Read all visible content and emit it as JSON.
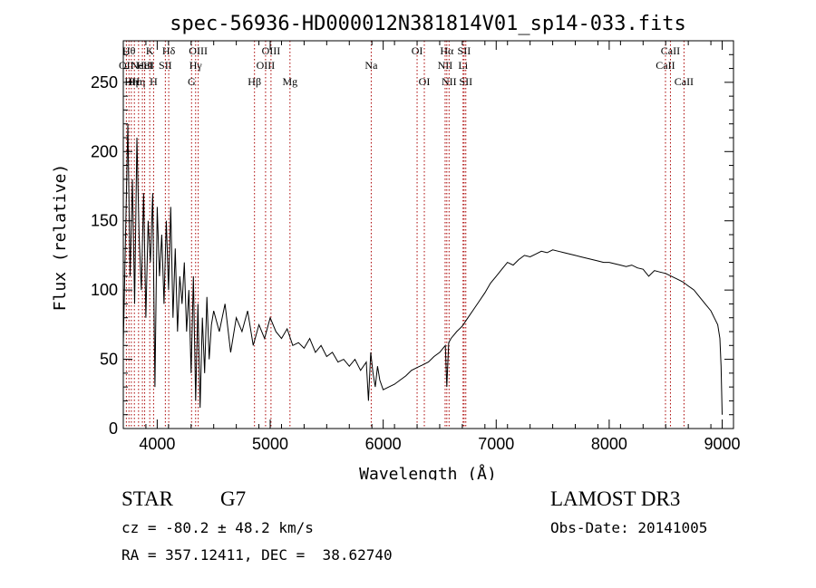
{
  "chart_data": {
    "type": "line",
    "title": "spec-56936-HD000012N381814V01_sp14-033.fits",
    "xlabel": "Wavelength (Å)",
    "ylabel": "Flux (relative)",
    "xlim": [
      3700,
      9100
    ],
    "ylim": [
      0,
      280
    ],
    "xticks": [
      "4000",
      "5000",
      "6000",
      "7000",
      "8000",
      "9000"
    ],
    "yticks": [
      "0",
      "50",
      "100",
      "150",
      "200",
      "250"
    ],
    "line_color": "#000000",
    "marker_color": "#aa0000",
    "series": [
      {
        "x": [
          3700,
          3720,
          3740,
          3760,
          3780,
          3800,
          3820,
          3840,
          3860,
          3880,
          3900,
          3920,
          3940,
          3960,
          3980,
          4000,
          4020,
          4040,
          4060,
          4080,
          4100,
          4120,
          4140,
          4160,
          4180,
          4200,
          4220,
          4240,
          4260,
          4280,
          4300,
          4320,
          4340,
          4360,
          4380,
          4400,
          4420,
          4440,
          4460,
          4480,
          4500,
          4550,
          4600,
          4650,
          4700,
          4750,
          4800,
          4850,
          4900,
          4950,
          5000,
          5050,
          5100,
          5150,
          5200,
          5250,
          5300,
          5350,
          5400,
          5450,
          5500,
          5550,
          5600,
          5650,
          5700,
          5750,
          5800,
          5850,
          5870,
          5890,
          5910,
          5930,
          5950,
          5970,
          6000,
          6050,
          6100,
          6150,
          6200,
          6250,
          6300,
          6350,
          6400,
          6450,
          6500,
          6530,
          6550,
          6563,
          6580,
          6600,
          6650,
          6700,
          6750,
          6800,
          6850,
          6900,
          6950,
          7000,
          7050,
          7100,
          7150,
          7200,
          7250,
          7300,
          7350,
          7400,
          7450,
          7500,
          7550,
          7600,
          7650,
          7700,
          7750,
          7800,
          7850,
          7900,
          7950,
          8000,
          8050,
          8100,
          8150,
          8200,
          8250,
          8300,
          8350,
          8400,
          8450,
          8500,
          8550,
          8600,
          8650,
          8700,
          8750,
          8800,
          8850,
          8900,
          8930,
          8960,
          8980,
          8990,
          9000
        ],
        "y": [
          60,
          140,
          220,
          110,
          180,
          90,
          210,
          140,
          100,
          170,
          80,
          150,
          120,
          170,
          30,
          160,
          110,
          140,
          90,
          150,
          100,
          160,
          80,
          130,
          70,
          110,
          90,
          120,
          70,
          100,
          40,
          110,
          20,
          90,
          15,
          80,
          40,
          95,
          50,
          75,
          85,
          70,
          90,
          55,
          80,
          70,
          85,
          60,
          75,
          65,
          80,
          70,
          65,
          72,
          60,
          62,
          58,
          65,
          55,
          60,
          52,
          55,
          48,
          50,
          45,
          50,
          42,
          48,
          20,
          55,
          40,
          30,
          45,
          35,
          28,
          30,
          32,
          35,
          38,
          42,
          44,
          46,
          48,
          52,
          55,
          58,
          60,
          30,
          62,
          65,
          70,
          74,
          80,
          86,
          92,
          98,
          105,
          110,
          115,
          120,
          118,
          122,
          125,
          124,
          126,
          128,
          127,
          129,
          128,
          127,
          126,
          125,
          124,
          123,
          122,
          121,
          120,
          120,
          119,
          118,
          117,
          118,
          116,
          115,
          110,
          114,
          113,
          112,
          110,
          108,
          106,
          103,
          100,
          95,
          90,
          85,
          80,
          75,
          65,
          45,
          10
        ]
      }
    ],
    "line_markers": [
      {
        "x": 3727,
        "label": "OII",
        "row": 1
      },
      {
        "x": 3750,
        "label": "Hθ",
        "row": 0
      },
      {
        "x": 3771,
        "label": "Hη",
        "row": 2
      },
      {
        "x": 3798,
        "label": "Hε",
        "row": 2
      },
      {
        "x": 3835,
        "label": "Hη",
        "row": 2
      },
      {
        "x": 3869,
        "label": "NeIII",
        "row": 1
      },
      {
        "x": 3889,
        "label": "HeI",
        "row": 1
      },
      {
        "x": 3934,
        "label": "K",
        "row": 0
      },
      {
        "x": 3968,
        "label": "H",
        "row": 2
      },
      {
        "x": 4072,
        "label": "SII",
        "row": 1
      },
      {
        "x": 4102,
        "label": "Hδ",
        "row": 0
      },
      {
        "x": 4304,
        "label": "G",
        "row": 2
      },
      {
        "x": 4340,
        "label": "Hγ",
        "row": 1
      },
      {
        "x": 4363,
        "label": "OIII",
        "row": 0
      },
      {
        "x": 4861,
        "label": "Hβ",
        "row": 2
      },
      {
        "x": 4959,
        "label": "OIII",
        "row": 1
      },
      {
        "x": 5007,
        "label": "OIII",
        "row": 0
      },
      {
        "x": 5175,
        "label": "Mg",
        "row": 2
      },
      {
        "x": 5894,
        "label": "Na",
        "row": 1
      },
      {
        "x": 6300,
        "label": "OI",
        "row": 0
      },
      {
        "x": 6364,
        "label": "OI",
        "row": 2
      },
      {
        "x": 6548,
        "label": "NII",
        "row": 1
      },
      {
        "x": 6563,
        "label": "Hα",
        "row": 0
      },
      {
        "x": 6583,
        "label": "NII",
        "row": 2
      },
      {
        "x": 6707,
        "label": "Li",
        "row": 1
      },
      {
        "x": 6716,
        "label": "SII",
        "row": 0
      },
      {
        "x": 6731,
        "label": "SII",
        "row": 2
      },
      {
        "x": 8498,
        "label": "CaII",
        "row": 1
      },
      {
        "x": 8542,
        "label": "CaII",
        "row": 0
      },
      {
        "x": 8662,
        "label": "CaII",
        "row": 2
      }
    ]
  },
  "info": {
    "object_class": "STAR",
    "subclass": "G7",
    "survey": "LAMOST DR3",
    "redshift": "cz = -80.2 ± 48.2 km/s",
    "obs_date": "Obs-Date: 20141005",
    "coords": "RA = 357.12411, DEC =  38.62740"
  }
}
